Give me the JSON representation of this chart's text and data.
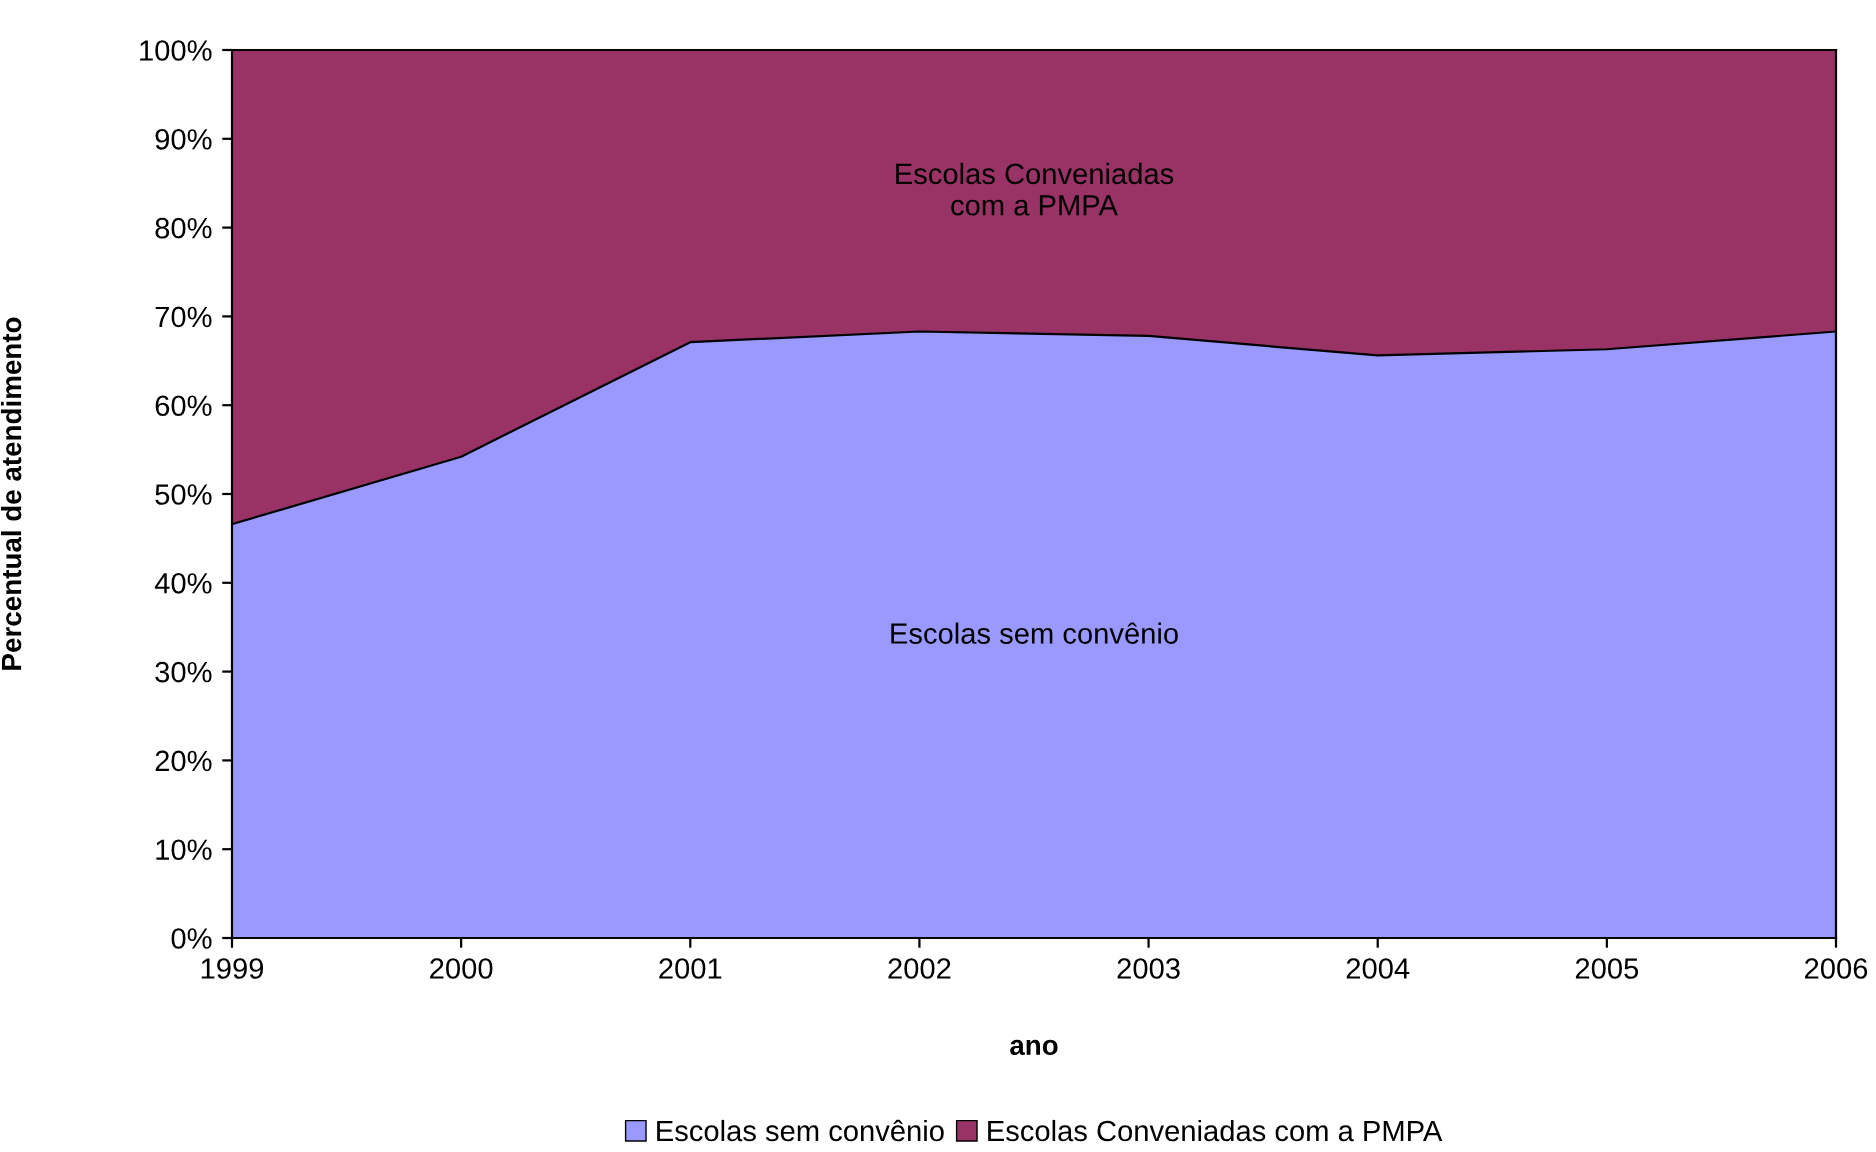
{
  "chart_data": {
    "type": "area",
    "stacked": true,
    "xlabel": "ano",
    "ylabel": "Percentual de atendimento",
    "x": [
      1999,
      2000,
      2001,
      2002,
      2003,
      2004,
      2005,
      2006
    ],
    "series": [
      {
        "name": "Escolas sem convênio",
        "color": "#9999ff",
        "values": [
          46.6,
          54.2,
          67.1,
          68.3,
          67.8,
          65.6,
          66.3,
          68.3
        ]
      },
      {
        "name": "Escolas Conveniadas com a PMPA",
        "color": "#993366",
        "values": [
          53.4,
          45.8,
          32.9,
          31.7,
          32.2,
          34.4,
          33.7,
          31.7
        ]
      }
    ],
    "xlim": [
      1999,
      2006
    ],
    "xticks": [
      1999,
      2000,
      2001,
      2002,
      2003,
      2004,
      2005,
      2006
    ],
    "ylim": [
      0,
      100
    ],
    "yticks": [
      {
        "value": 0,
        "label": "0%"
      },
      {
        "value": 10,
        "label": "10%"
      },
      {
        "value": 20,
        "label": "20%"
      },
      {
        "value": 30,
        "label": "30%"
      },
      {
        "value": 40,
        "label": "40%"
      },
      {
        "value": 50,
        "label": "50%"
      },
      {
        "value": 60,
        "label": "60%"
      },
      {
        "value": 70,
        "label": "70%"
      },
      {
        "value": 80,
        "label": "80%"
      },
      {
        "value": 90,
        "label": "90%"
      },
      {
        "value": 100,
        "label": "100%"
      }
    ],
    "annotations": [
      "Escolas Conveniadas\ncom a PMPA",
      "Escolas sem convênio"
    ],
    "grid": false,
    "legend": "bottom"
  }
}
